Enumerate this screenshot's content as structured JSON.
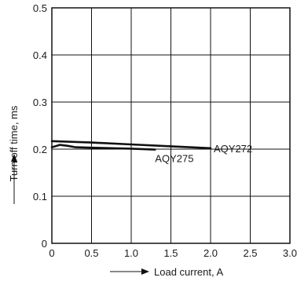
{
  "chart_data": {
    "type": "line",
    "title": "",
    "xlabel": "Load current, A",
    "ylabel": "Turn off time, ms",
    "xlim": [
      0,
      3.0
    ],
    "ylim": [
      0,
      0.5
    ],
    "x_ticks": [
      "0",
      "0.5",
      "1.0",
      "1.5",
      "2.0",
      "2.5",
      "3.0"
    ],
    "y_ticks": [
      "0",
      "0.1",
      "0.2",
      "0.3",
      "0.4",
      "0.5"
    ],
    "grid": true,
    "series": [
      {
        "name": "AQY272",
        "x": [
          0.0,
          0.5,
          1.0,
          1.5,
          2.0
        ],
        "y": [
          0.217,
          0.214,
          0.21,
          0.206,
          0.202
        ]
      },
      {
        "name": "AQY275",
        "x": [
          0.0,
          0.1,
          0.2,
          0.3,
          0.5,
          1.0,
          1.3
        ],
        "y": [
          0.204,
          0.209,
          0.207,
          0.204,
          0.203,
          0.201,
          0.199
        ]
      }
    ]
  }
}
